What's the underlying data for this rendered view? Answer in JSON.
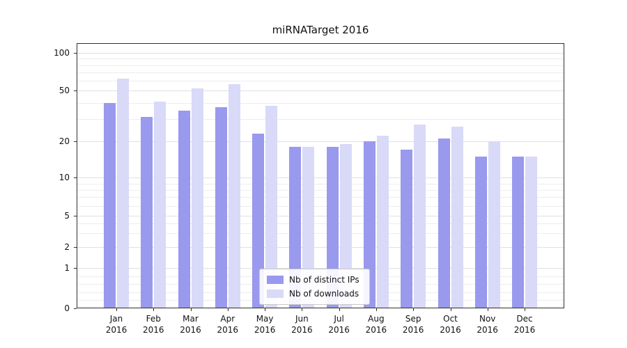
{
  "chart_data": {
    "type": "bar",
    "title": "miRNATarget 2016",
    "categories": [
      "Jan 2016",
      "Feb 2016",
      "Mar 2016",
      "Apr 2016",
      "May 2016",
      "Jun 2016",
      "Jul 2016",
      "Aug 2016",
      "Sep 2016",
      "Oct 2016",
      "Nov 2016",
      "Dec 2016"
    ],
    "series": [
      {
        "name": "Nb of distinct IPs",
        "color": "#9999ee",
        "values": [
          40,
          31,
          35,
          37,
          23,
          18,
          18,
          20,
          17,
          21,
          15,
          15
        ]
      },
      {
        "name": "Nb of downloads",
        "color": "#d9d9f8",
        "values": [
          62,
          41,
          52,
          56,
          38,
          18,
          19,
          22,
          27,
          26,
          20,
          15
        ]
      }
    ],
    "yscale": "symlog",
    "yticks": [
      0,
      1,
      2,
      5,
      10,
      20,
      50,
      100
    ],
    "ylim": [
      0,
      130
    ],
    "xlabel": "",
    "ylabel": "",
    "grid": true,
    "legend_position": "lower center"
  }
}
